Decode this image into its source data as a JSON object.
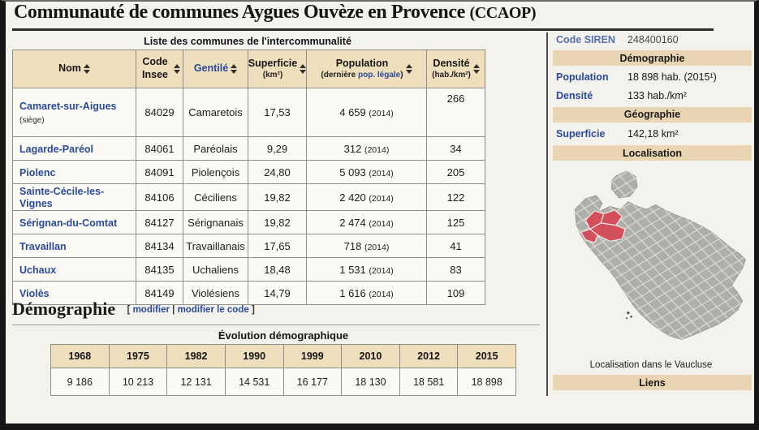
{
  "title": "Communauté de communes Aygues Ouvèze en Provence",
  "title_abbr": "(CCAOP)",
  "communes_table": {
    "caption": "Liste des communes de l'intercommunalité",
    "columns": [
      {
        "label": "Nom"
      },
      {
        "label": "Code Insee"
      },
      {
        "label": "Gentilé",
        "label_link": true
      },
      {
        "label": "Superficie",
        "sub": "(km²)"
      },
      {
        "label": "Population",
        "sub_parts": [
          {
            "text": "(dernière "
          },
          {
            "text": "pop. légale",
            "link": true
          },
          {
            "text": ")"
          }
        ]
      },
      {
        "label": "Densité",
        "sub": "(hab./km²)"
      }
    ],
    "rows": [
      {
        "name": "Camaret-sur-Aigues",
        "note": "(siège)",
        "insee": "84029",
        "gentile": "Camaretois",
        "superficie": "17,53",
        "population": "4 659",
        "pop_year": "2014",
        "densite": "266"
      },
      {
        "name": "Lagarde-Paréol",
        "insee": "84061",
        "gentile": "Paréolais",
        "superficie": "9,29",
        "population": "312",
        "pop_year": "2014",
        "densite": "34"
      },
      {
        "name": "Piolenc",
        "insee": "84091",
        "gentile": "Piolençois",
        "superficie": "24,80",
        "population": "5 093",
        "pop_year": "2014",
        "densite": "205"
      },
      {
        "name": "Sainte-Cécile-les-Vignes",
        "insee": "84106",
        "gentile": "Céciliens",
        "superficie": "19,82",
        "population": "2 420",
        "pop_year": "2014",
        "densite": "122"
      },
      {
        "name": "Sérignan-du-Comtat",
        "insee": "84127",
        "gentile": "Sérignanais",
        "superficie": "19,82",
        "population": "2 474",
        "pop_year": "2014",
        "densite": "125"
      },
      {
        "name": "Travaillan",
        "insee": "84134",
        "gentile": "Travaillanais",
        "superficie": "17,65",
        "population": "718",
        "pop_year": "2014",
        "densite": "41"
      },
      {
        "name": "Uchaux",
        "insee": "84135",
        "gentile": "Uchaliens",
        "superficie": "18,48",
        "population": "1 531",
        "pop_year": "2014",
        "densite": "83"
      },
      {
        "name": "Violès",
        "insee": "84149",
        "gentile": "Violésiens",
        "superficie": "14,79",
        "population": "1 616",
        "pop_year": "2014",
        "densite": "109"
      }
    ]
  },
  "demography": {
    "heading": "Démographie",
    "edit_links": [
      "modifier",
      "modifier le code"
    ],
    "evolution": {
      "caption": "Évolution démographique",
      "years": [
        "1968",
        "1975",
        "1982",
        "1990",
        "1999",
        "2010",
        "2012",
        "2015"
      ],
      "populations": [
        "9 186",
        "10 213",
        "12 131",
        "14 531",
        "16 177",
        "18 130",
        "18 581",
        "18 898"
      ]
    }
  },
  "infobox": {
    "siren": {
      "label": "Code SIREN",
      "value": "248400160"
    },
    "demographie_header": "Démographie",
    "population": {
      "label": "Population",
      "value": "18 898 hab. (2015¹)"
    },
    "densite": {
      "label": "Densité",
      "value": "133 hab./km²"
    },
    "geographie_header": "Géographie",
    "superficie": {
      "label": "Superficie",
      "value": "142,18 km²"
    },
    "localisation_header": "Localisation",
    "map_caption": "Localisation dans le Vaucluse",
    "liens_header": "Liens"
  },
  "colors": {
    "header_beige": "#f0dfbc",
    "infobox_beige": "#e9d5b2",
    "link_blue": "#2a4a9c",
    "map_gray": "#aeafab",
    "map_highlight_red": "#d44f5c",
    "paper": "#f4f2ec"
  }
}
